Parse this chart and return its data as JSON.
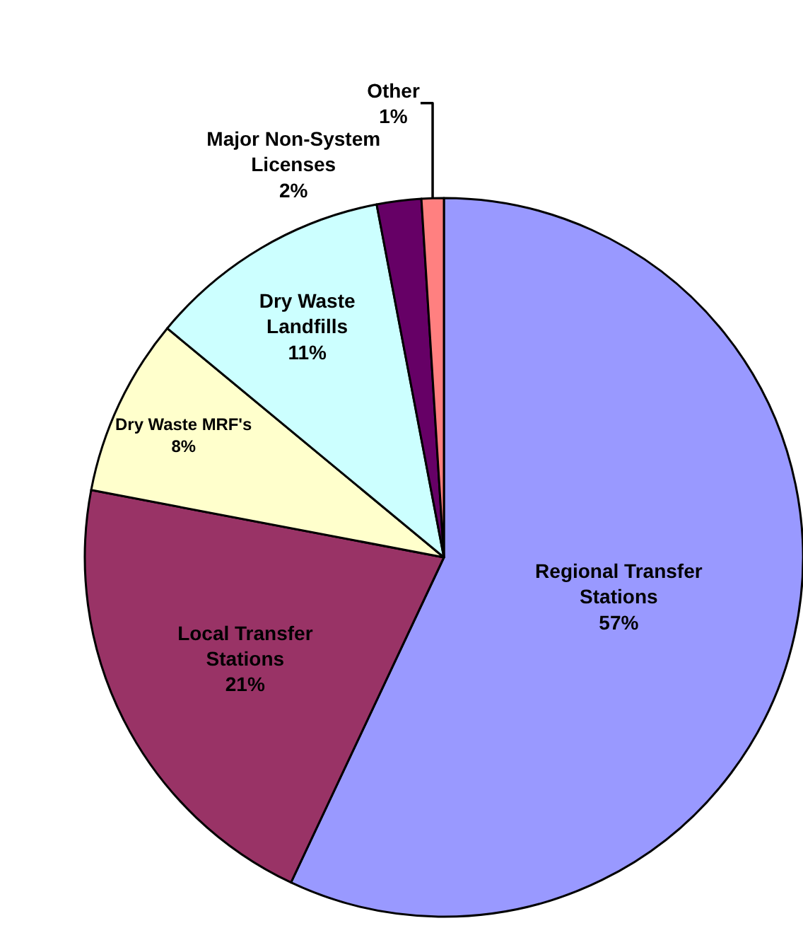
{
  "chart_data": {
    "type": "pie",
    "categories": [
      "Regional Transfer Stations",
      "Local Transfer Stations",
      "Dry Waste MRF's",
      "Dry Waste Landfills",
      "Major Non-System Licenses",
      "Other"
    ],
    "values": [
      57,
      21,
      8,
      11,
      2,
      1
    ],
    "value_labels": [
      "57%",
      "21%",
      "8%",
      "11%",
      "2%",
      "1%"
    ],
    "colors": [
      "#9999ff",
      "#993366",
      "#ffffcc",
      "#ccffff",
      "#660066",
      "#ff8080"
    ],
    "legend": false
  }
}
